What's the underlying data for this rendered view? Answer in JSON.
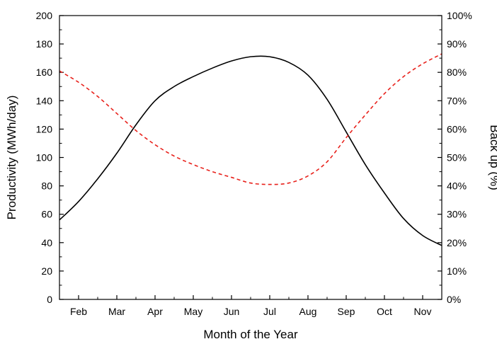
{
  "chart_data": {
    "type": "line",
    "title": "",
    "xlabel": "Month of the Year",
    "ylabel": "Productivity (MWh/day)",
    "y2label": "Back up (%)",
    "x_tick_labels": [
      "Feb",
      "Mar",
      "Apr",
      "May",
      "Jun",
      "Jul",
      "Aug",
      "Sep",
      "Oct",
      "Nov"
    ],
    "xlim": [
      1.5,
      11.5
    ],
    "ylim": [
      0,
      200
    ],
    "y_ticks": [
      0,
      20,
      40,
      60,
      80,
      100,
      120,
      140,
      160,
      180,
      200
    ],
    "y2lim": [
      0,
      100
    ],
    "y2_ticks": [
      0,
      10,
      20,
      30,
      40,
      50,
      60,
      70,
      80,
      90,
      100
    ],
    "y2_tick_labels": [
      "0%",
      "10%",
      "20%",
      "30%",
      "40%",
      "50%",
      "60%",
      "70%",
      "80%",
      "90%",
      "100%"
    ],
    "grid": false,
    "legend": "none",
    "series": [
      {
        "axis": "left",
        "color": "#000000",
        "style": "solid",
        "x": [
          1.5,
          2,
          2.5,
          3,
          3.5,
          4,
          4.5,
          5,
          5.5,
          6,
          6.5,
          7,
          7.5,
          8,
          8.5,
          9,
          9.5,
          10,
          10.5,
          11,
          11.5
        ],
        "y": [
          56,
          69,
          85,
          103,
          123,
          140,
          150,
          157,
          163,
          168,
          171,
          171,
          167,
          158,
          141,
          118,
          95,
          75,
          57,
          45,
          38
        ]
      },
      {
        "axis": "right",
        "color": "#e8211b",
        "style": "dashed",
        "x": [
          1.5,
          2,
          2.5,
          3,
          3.5,
          4,
          4.5,
          5,
          5.5,
          6,
          6.5,
          7,
          7.5,
          8,
          8.5,
          9,
          9.5,
          10,
          10.5,
          11,
          11.5
        ],
        "y": [
          80.5,
          76.5,
          71.5,
          65.5,
          59.5,
          54.5,
          50.5,
          47.5,
          45,
          43,
          41,
          40.5,
          41,
          43.5,
          48.5,
          57,
          65,
          72.5,
          78.5,
          83,
          86.5
        ]
      }
    ]
  }
}
